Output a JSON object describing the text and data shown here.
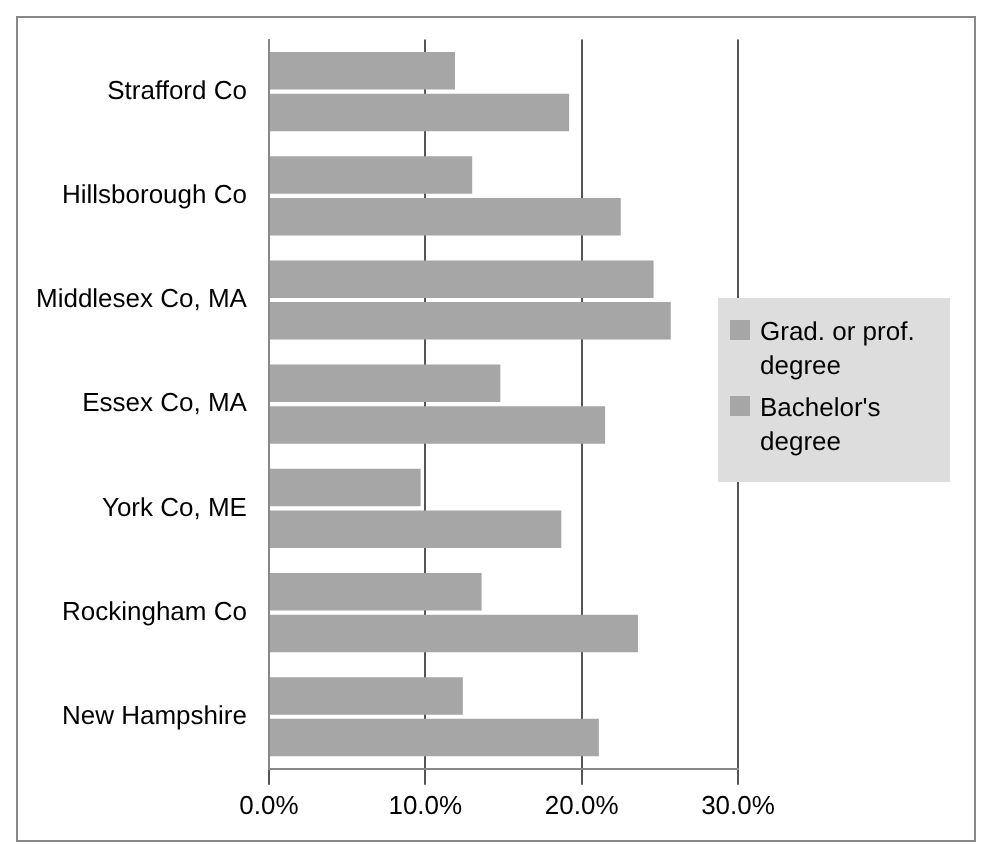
{
  "chart_data": {
    "type": "bar",
    "orientation": "horizontal",
    "categories": [
      "Strafford Co",
      "Hillsborough Co",
      "Middlesex Co, MA",
      "Essex Co, MA",
      "York Co, ME",
      "Rockingham Co",
      "New Hampshire"
    ],
    "series": [
      {
        "name": "Grad. or prof. degree",
        "color": "#a6a6a6",
        "values": [
          11.9,
          13.0,
          24.6,
          14.8,
          9.7,
          13.6,
          12.4
        ]
      },
      {
        "name": "Bachelor's degree",
        "color": "#a6a6a6",
        "values": [
          19.2,
          22.5,
          25.7,
          21.5,
          18.7,
          23.6,
          21.1
        ]
      }
    ],
    "xlim": [
      0,
      30
    ],
    "xticks": [
      {
        "value": 0,
        "label": "0.0%"
      },
      {
        "value": 10,
        "label": "10.0%"
      },
      {
        "value": 20,
        "label": "20.0%"
      },
      {
        "value": 30,
        "label": "30.0%"
      }
    ],
    "grid": "x",
    "legend": "right"
  }
}
